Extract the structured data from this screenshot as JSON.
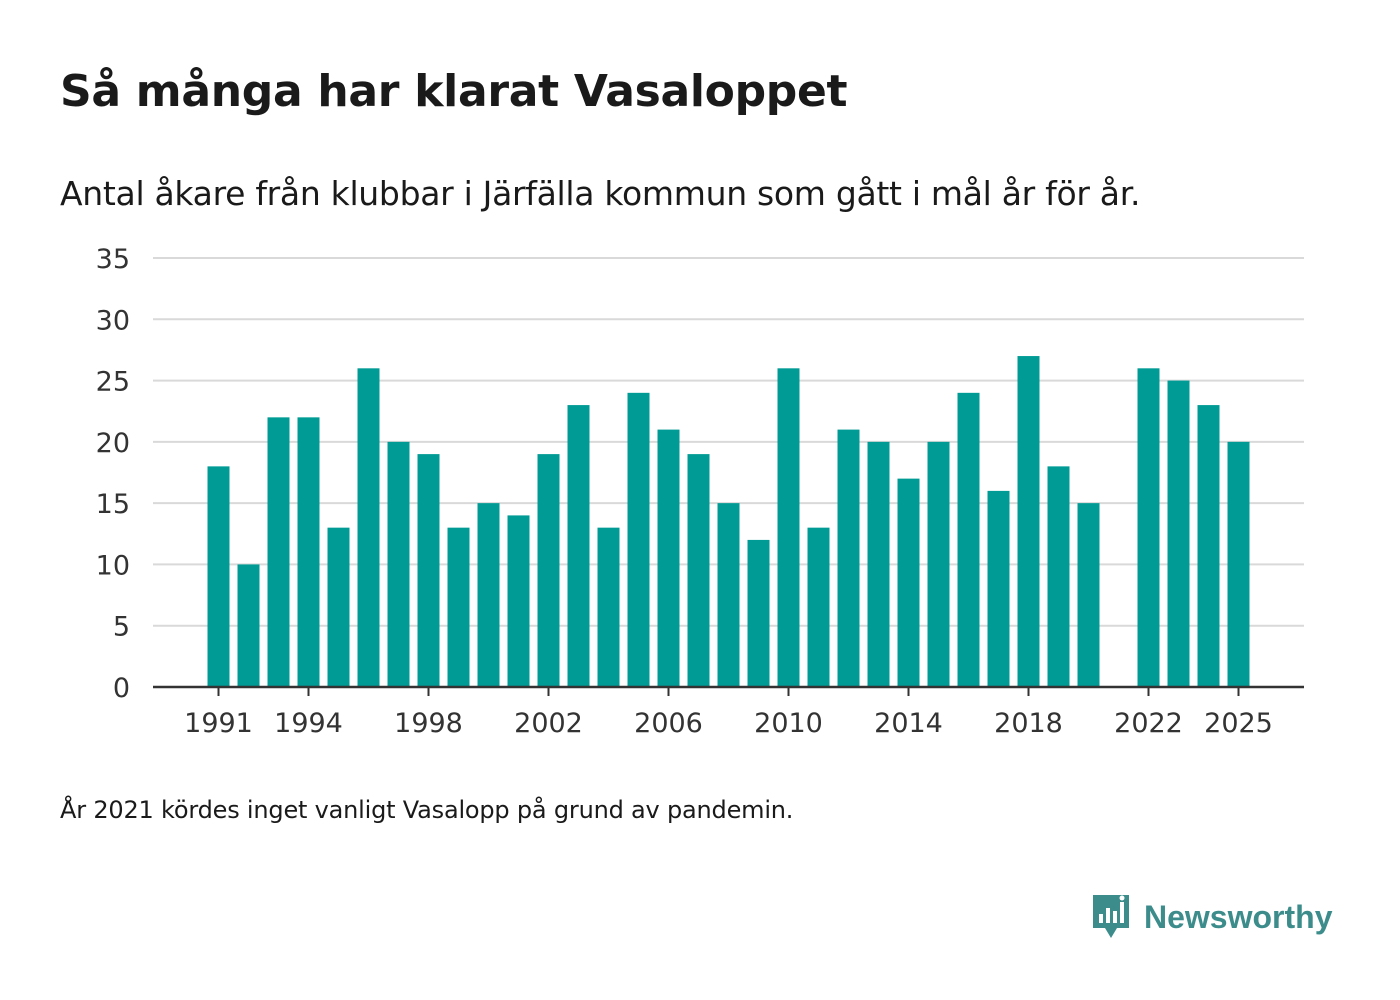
{
  "chart_data": {
    "type": "bar",
    "title": "Så många har klarat Vasaloppet",
    "subtitle": "Antal åkare från klubbar i Järfälla kommun som gått i mål år för år.",
    "categories": [
      1991,
      1992,
      1993,
      1994,
      1995,
      1996,
      1997,
      1998,
      1999,
      2000,
      2001,
      2002,
      2003,
      2004,
      2005,
      2006,
      2007,
      2008,
      2009,
      2010,
      2011,
      2012,
      2013,
      2014,
      2015,
      2016,
      2017,
      2018,
      2019,
      2020,
      2021,
      2022,
      2023,
      2024,
      2025
    ],
    "values": [
      18,
      10,
      22,
      22,
      13,
      26,
      20,
      19,
      13,
      15,
      14,
      19,
      23,
      13,
      24,
      21,
      19,
      15,
      12,
      26,
      13,
      21,
      20,
      17,
      20,
      24,
      16,
      27,
      18,
      15,
      null,
      26,
      25,
      23,
      20
    ],
    "x_tick_labels": [
      "1991",
      "1994",
      "1998",
      "2002",
      "2006",
      "2010",
      "2014",
      "2018",
      "2022",
      "2025"
    ],
    "y_ticks": [
      0,
      5,
      10,
      15,
      20,
      25,
      30,
      35
    ],
    "ylim": [
      0,
      35
    ],
    "xlabel": "",
    "ylabel": "",
    "grid": true,
    "bar_color": "#009b94",
    "footnote": "År 2021 kördes inget vanligt Vasalopp på grund av pandemin."
  },
  "brand": {
    "name": "Newsworthy",
    "icon": "newsworthy-logo-icon",
    "color": "#3d8c8c"
  }
}
